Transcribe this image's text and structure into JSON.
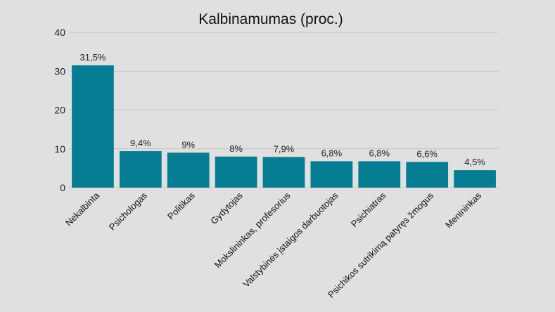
{
  "chart_data": {
    "type": "bar",
    "title": "Kalbinamumas (proc.)",
    "xlabel": "",
    "ylabel": "",
    "ylim": [
      0,
      40
    ],
    "yticks": [
      0,
      10,
      20,
      30,
      40
    ],
    "grid": true,
    "legend": "none",
    "bar_color": "#067d92",
    "categories": [
      "Nekalbinta",
      "Psichologas",
      "Politikas",
      "Gydytojas",
      "Mokslininkas, profesorius",
      "Valstybinės įstaigos darbuotojas",
      "Psichiatras",
      "Psichikos sutrikimą patyręs žmogus",
      "Menininkas"
    ],
    "values": [
      31.5,
      9.4,
      9,
      8,
      7.9,
      6.8,
      6.8,
      6.6,
      4.5
    ],
    "data_labels": [
      "31,5%",
      "9,4%",
      "9%",
      "8%",
      "7,9%",
      "6,8%",
      "6,8%",
      "6,6%",
      "4,5%"
    ]
  }
}
